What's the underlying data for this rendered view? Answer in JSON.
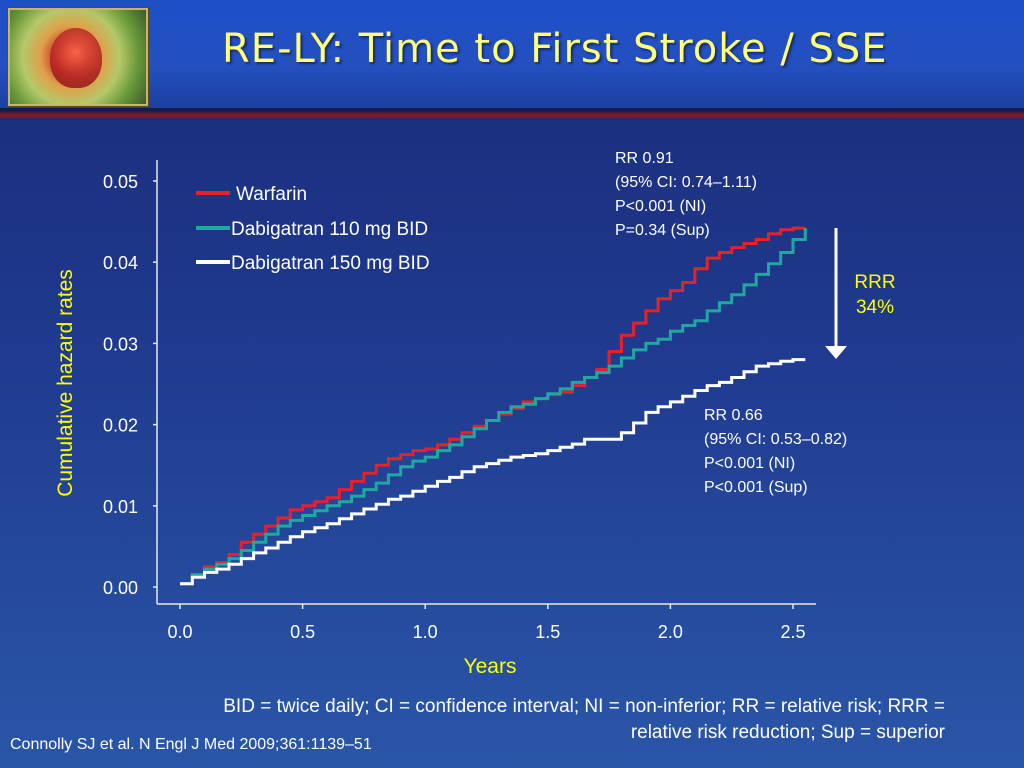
{
  "header": {
    "title": "RE-LY:  Time to First Stroke / SSE"
  },
  "chart_data": {
    "type": "line",
    "xlabel": "Years",
    "ylabel": "Cumulative hazard rates",
    "xlim": [
      0.0,
      2.5
    ],
    "ylim": [
      0.0,
      0.05
    ],
    "x_ticks": [
      "0.0",
      "0.5",
      "1.0",
      "1.5",
      "2.0",
      "2.5"
    ],
    "y_ticks": [
      "0.00",
      "0.01",
      "0.02",
      "0.03",
      "0.04",
      "0.05"
    ],
    "legend_position": "top-left",
    "series": [
      {
        "name": "Warfarin",
        "color": "#e8202a",
        "x": [
          0.0,
          0.05,
          0.1,
          0.15,
          0.2,
          0.25,
          0.3,
          0.35,
          0.4,
          0.45,
          0.5,
          0.55,
          0.6,
          0.65,
          0.7,
          0.75,
          0.8,
          0.85,
          0.9,
          0.95,
          1.0,
          1.05,
          1.1,
          1.15,
          1.2,
          1.25,
          1.3,
          1.35,
          1.4,
          1.45,
          1.5,
          1.55,
          1.6,
          1.65,
          1.7,
          1.75,
          1.8,
          1.85,
          1.9,
          1.95,
          2.0,
          2.05,
          2.1,
          2.15,
          2.2,
          2.25,
          2.3,
          2.35,
          2.4,
          2.45,
          2.5,
          2.55
        ],
        "y": [
          0.0004,
          0.0015,
          0.0025,
          0.003,
          0.004,
          0.0055,
          0.0065,
          0.0075,
          0.0085,
          0.0095,
          0.01,
          0.0105,
          0.011,
          0.012,
          0.013,
          0.014,
          0.015,
          0.0158,
          0.0163,
          0.0168,
          0.017,
          0.0175,
          0.0182,
          0.019,
          0.0198,
          0.0205,
          0.0213,
          0.022,
          0.0228,
          0.0232,
          0.0237,
          0.024,
          0.0248,
          0.0258,
          0.0268,
          0.029,
          0.031,
          0.0325,
          0.034,
          0.0355,
          0.0365,
          0.0375,
          0.0392,
          0.0405,
          0.0412,
          0.0418,
          0.0423,
          0.0428,
          0.0435,
          0.044,
          0.0442,
          0.0442
        ]
      },
      {
        "name": "Dabigatran 110 mg BID",
        "color": "#1fa8a0",
        "x": [
          0.0,
          0.05,
          0.1,
          0.15,
          0.2,
          0.25,
          0.3,
          0.35,
          0.4,
          0.45,
          0.5,
          0.55,
          0.6,
          0.65,
          0.7,
          0.75,
          0.8,
          0.85,
          0.9,
          0.95,
          1.0,
          1.05,
          1.1,
          1.15,
          1.2,
          1.25,
          1.3,
          1.35,
          1.4,
          1.45,
          1.5,
          1.55,
          1.6,
          1.65,
          1.7,
          1.75,
          1.8,
          1.85,
          1.9,
          1.95,
          2.0,
          2.05,
          2.1,
          2.15,
          2.2,
          2.25,
          2.3,
          2.35,
          2.4,
          2.45,
          2.5,
          2.55
        ],
        "y": [
          0.0004,
          0.0015,
          0.0022,
          0.0028,
          0.0035,
          0.0045,
          0.0055,
          0.0065,
          0.0075,
          0.0082,
          0.0088,
          0.0094,
          0.01,
          0.0105,
          0.0112,
          0.012,
          0.0128,
          0.0138,
          0.0148,
          0.0155,
          0.016,
          0.0168,
          0.0175,
          0.0185,
          0.0195,
          0.0205,
          0.0215,
          0.0222,
          0.0225,
          0.0232,
          0.0238,
          0.0244,
          0.0252,
          0.0258,
          0.0264,
          0.0272,
          0.0282,
          0.0292,
          0.03,
          0.0305,
          0.0315,
          0.0322,
          0.0328,
          0.034,
          0.035,
          0.036,
          0.0372,
          0.0385,
          0.0398,
          0.0412,
          0.0428,
          0.0442
        ]
      },
      {
        "name": "Dabigatran 150 mg BID",
        "color": "#ffffff",
        "x": [
          0.0,
          0.05,
          0.1,
          0.15,
          0.2,
          0.25,
          0.3,
          0.35,
          0.4,
          0.45,
          0.5,
          0.55,
          0.6,
          0.65,
          0.7,
          0.75,
          0.8,
          0.85,
          0.9,
          0.95,
          1.0,
          1.05,
          1.1,
          1.15,
          1.2,
          1.25,
          1.3,
          1.35,
          1.4,
          1.45,
          1.5,
          1.55,
          1.6,
          1.65,
          1.7,
          1.75,
          1.8,
          1.85,
          1.9,
          1.95,
          2.0,
          2.05,
          2.1,
          2.15,
          2.2,
          2.25,
          2.3,
          2.35,
          2.4,
          2.45,
          2.5,
          2.55
        ],
        "y": [
          0.0004,
          0.0012,
          0.0018,
          0.0022,
          0.0028,
          0.0035,
          0.0042,
          0.0048,
          0.0055,
          0.0062,
          0.0068,
          0.0073,
          0.0078,
          0.0084,
          0.009,
          0.0096,
          0.0102,
          0.0108,
          0.0112,
          0.0118,
          0.0124,
          0.013,
          0.0135,
          0.0142,
          0.0148,
          0.0152,
          0.0156,
          0.016,
          0.0162,
          0.0164,
          0.0168,
          0.0172,
          0.0176,
          0.0182,
          0.0182,
          0.0182,
          0.019,
          0.0202,
          0.0215,
          0.0222,
          0.0228,
          0.0235,
          0.0242,
          0.0248,
          0.0252,
          0.0258,
          0.0265,
          0.0272,
          0.0275,
          0.0278,
          0.028,
          0.028
        ]
      }
    ],
    "annotations": {
      "upper": [
        "RR 0.91",
        "(95% CI: 0.74–1.11)",
        "P<0.001 (NI)",
        "P=0.34 (Sup)"
      ],
      "lower": [
        "RR 0.66",
        "(95% CI: 0.53–0.82)",
        "P<0.001 (NI)",
        "P<0.001 (Sup)"
      ],
      "rrr": [
        "RRR",
        "34%"
      ]
    }
  },
  "footer": {
    "abbreviations_line1": "BID = twice daily; CI = confidence interval; NI = non-inferior; RR = relative risk; RRR =",
    "abbreviations_line2": "relative risk reduction; Sup = superior",
    "citation": "Connolly SJ et al. N Engl J Med 2009;361:1139–51"
  },
  "colors": {
    "title": "#ffff7a",
    "axis_title": "#ffff00",
    "rrr": "#ffff00",
    "background": "#1f3a8e"
  }
}
